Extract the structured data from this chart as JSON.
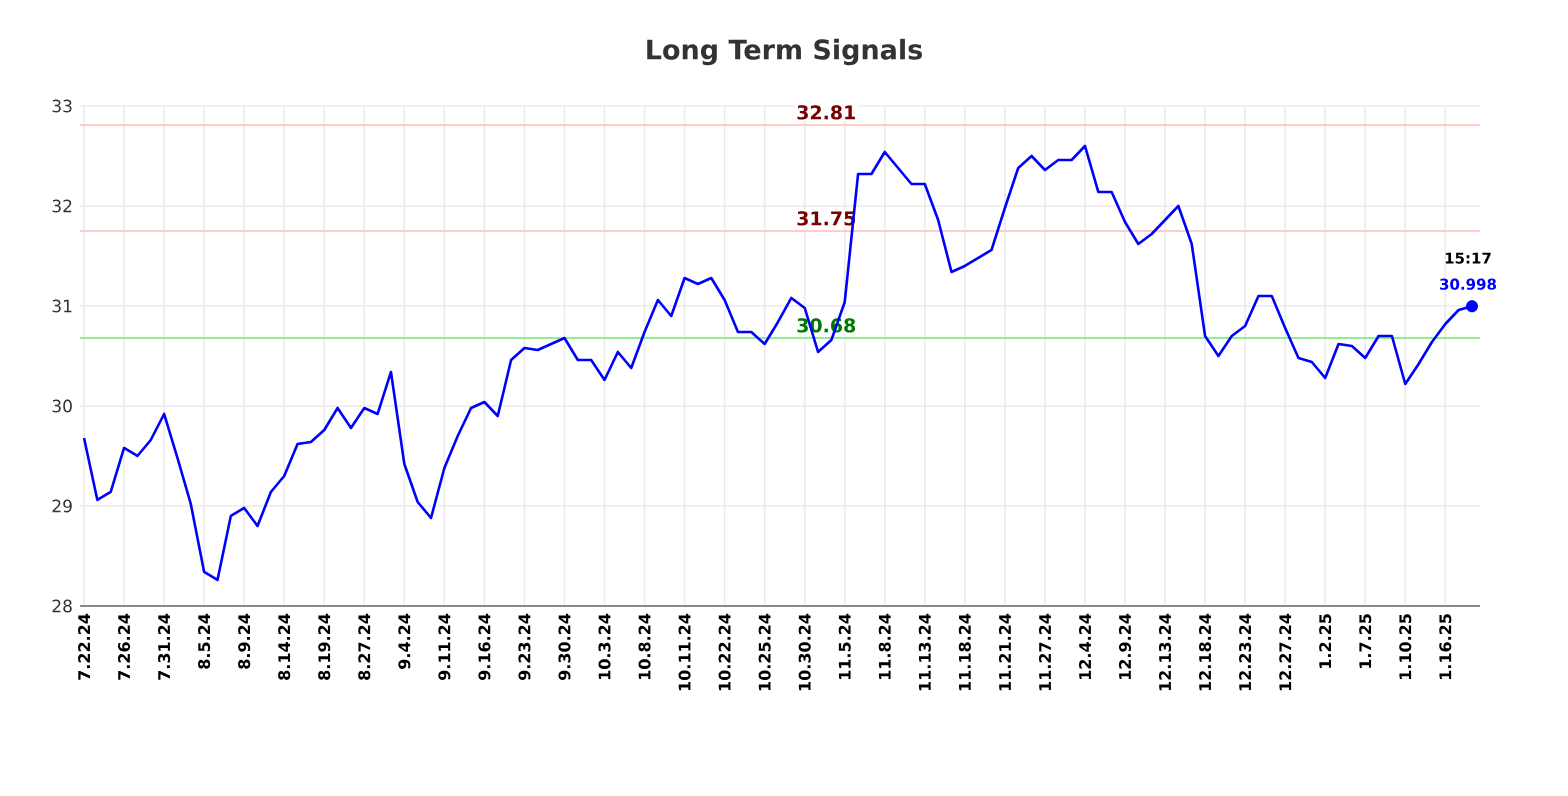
{
  "chart_data": {
    "type": "line",
    "title": "Long Term Signals",
    "categories": [
      "7.22.24",
      null,
      null,
      "7.26.24",
      null,
      null,
      "7.31.24",
      null,
      null,
      "8.5.24",
      null,
      null,
      "8.9.24",
      null,
      null,
      "8.14.24",
      null,
      null,
      "8.19.24",
      null,
      null,
      "8.27.24",
      null,
      null,
      "9.4.24",
      null,
      null,
      "9.11.24",
      null,
      null,
      "9.16.24",
      null,
      null,
      "9.23.24",
      null,
      null,
      "9.30.24",
      null,
      null,
      "10.3.24",
      null,
      null,
      "10.8.24",
      null,
      null,
      "10.11.24",
      null,
      null,
      "10.22.24",
      null,
      null,
      "10.25.24",
      null,
      null,
      "10.30.24",
      null,
      null,
      "11.5.24",
      null,
      null,
      "11.8.24",
      null,
      null,
      "11.13.24",
      null,
      null,
      "11.18.24",
      null,
      null,
      "11.21.24",
      null,
      null,
      "11.27.24",
      null,
      null,
      "12.4.24",
      null,
      null,
      "12.9.24",
      null,
      null,
      "12.13.24",
      null,
      null,
      "12.18.24",
      null,
      null,
      "12.23.24",
      null,
      null,
      "12.27.24",
      null,
      null,
      "1.2.25",
      null,
      null,
      "1.7.25",
      null,
      null,
      "1.10.25",
      null,
      null,
      "1.16.25",
      null,
      null
    ],
    "series": [
      {
        "color": "#0000ff",
        "values": [
          29.68,
          29.06,
          29.14,
          29.58,
          29.5,
          29.66,
          29.92,
          29.48,
          29.02,
          28.34,
          28.26,
          28.9,
          28.98,
          28.8,
          29.14,
          29.3,
          29.62,
          29.64,
          29.76,
          29.98,
          29.78,
          29.98,
          29.92,
          30.34,
          29.42,
          29.04,
          28.88,
          29.38,
          29.7,
          29.98,
          30.04,
          29.9,
          30.46,
          30.58,
          30.56,
          30.62,
          30.68,
          30.46,
          30.46,
          30.26,
          30.54,
          30.38,
          30.74,
          31.06,
          30.9,
          31.28,
          31.22,
          31.28,
          31.06,
          30.74,
          30.74,
          30.62,
          30.84,
          31.08,
          30.98,
          30.54,
          30.66,
          31.04,
          32.32,
          32.32,
          32.54,
          32.38,
          32.22,
          32.22,
          31.86,
          31.34,
          31.4,
          31.48,
          31.56,
          31.98,
          32.38,
          32.5,
          32.36,
          32.46,
          32.46,
          32.6,
          32.14,
          32.14,
          31.84,
          31.62,
          31.72,
          31.86,
          32.0,
          31.62,
          30.7,
          30.5,
          30.7,
          30.8,
          31.1,
          31.1,
          30.78,
          30.48,
          30.44,
          30.28,
          30.62,
          30.6,
          30.48,
          30.7,
          30.7,
          30.22,
          30.42,
          30.64,
          30.82,
          30.96,
          30.998
        ]
      }
    ],
    "ylim": [
      28,
      33
    ],
    "yticks": [
      28,
      29,
      30,
      31,
      32,
      33
    ],
    "grid": true,
    "marker": "none",
    "line_style": "solid",
    "ref_lines": [
      {
        "axis": "y",
        "value": 32.81,
        "label": "32.81",
        "color": "#ffcccc"
      },
      {
        "axis": "y",
        "value": 31.75,
        "label": "31.75",
        "color": "#ffcccc"
      },
      {
        "axis": "y",
        "value": 30.68,
        "label": "30.68",
        "color": "#90ee90"
      }
    ],
    "annotations": [
      {
        "text": "15:17",
        "y": 30.998
      },
      {
        "text": "30.998",
        "y": 30.998
      }
    ]
  }
}
